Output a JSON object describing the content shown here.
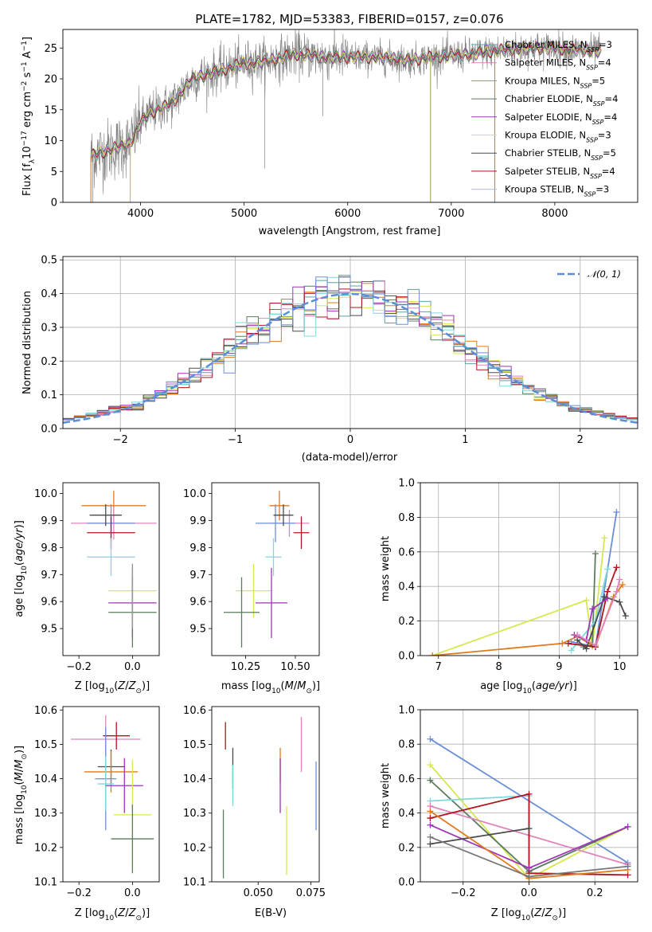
{
  "chart_data": [
    {
      "type": "line",
      "title": "PLATE=1782, MJD=53383, FIBERID=0157, z=0.076",
      "xlabel": "wavelength [Angstrom, rest frame]",
      "ylabel": "Flux [f_λ10^-17 erg cm^-2 s^-1 A^-1]",
      "xlim": [
        3250,
        8800
      ],
      "ylim": [
        0,
        28
      ],
      "xticks": [
        4000,
        5000,
        6000,
        7000,
        8000
      ],
      "yticks": [
        0,
        5,
        10,
        15,
        20,
        25
      ],
      "grid": false,
      "legend_position": "right",
      "continuum": {
        "x": [
          3520,
          3700,
          3900,
          4000,
          4100,
          4300,
          4500,
          4800,
          5000,
          5200,
          5500,
          5800,
          6000,
          6300,
          6600,
          6800,
          7000,
          7200,
          7400,
          7600,
          7800,
          8000,
          8200,
          8450
        ],
        "y": [
          7.5,
          8.5,
          9.5,
          13,
          14.5,
          16,
          20,
          21.5,
          22.5,
          22.8,
          24,
          23.5,
          23.5,
          23.5,
          23,
          23.5,
          23.8,
          24,
          24.5,
          24.8,
          25,
          25,
          24.7,
          24.5
        ]
      },
      "series": [
        {
          "name": "Chabrier MILES, N_SSP=3",
          "name_main": "Chabrier MILES, N",
          "sub": "SSP",
          "n": "=3",
          "color": "#5ea49f"
        },
        {
          "name": "Salpeter MILES, N_SSP=4",
          "name_main": "Salpeter MILES, N",
          "sub": "SSP",
          "n": "=4",
          "color": "#e084be"
        },
        {
          "name": "Kroupa MILES, N_SSP=5",
          "name_main": "Kroupa MILES, N",
          "sub": "SSP",
          "n": "=5",
          "color": "#e07a1f"
        },
        {
          "name": "Chabrier ELODIE, N_SSP=4",
          "name_main": "Chabrier ELODIE, N",
          "sub": "SSP",
          "n": "=4",
          "color": "#5c7b5c"
        },
        {
          "name": "Salpeter ELODIE, N_SSP=4",
          "name_main": "Salpeter ELODIE, N",
          "sub": "SSP",
          "n": "=4",
          "color": "#9d35b5"
        },
        {
          "name": "Kroupa ELODIE, N_SSP=3",
          "name_main": "Kroupa ELODIE, N",
          "sub": "SSP",
          "n": "=3",
          "color": "#d6e84f"
        },
        {
          "name": "Chabrier STELIB, N_SSP=5",
          "name_main": "Chabrier STELIB, N",
          "sub": "SSP",
          "n": "=5",
          "color": "#4a4a4a"
        },
        {
          "name": "Salpeter STELIB, N_SSP=4",
          "name_main": "Salpeter STELIB, N",
          "sub": "SSP",
          "n": "=4",
          "color": "#b0141e"
        },
        {
          "name": "Kroupa STELIB, N_SSP=3",
          "name_main": "Kroupa STELIB, N",
          "sub": "SSP",
          "n": "=3",
          "color": "#7fd8dc"
        }
      ]
    },
    {
      "type": "line",
      "xlabel": "(data-model)/error",
      "ylabel": "Normed distribution",
      "xlim": [
        -2.5,
        2.5
      ],
      "ylim": [
        0,
        0.51
      ],
      "xticks": [
        -2,
        -1,
        0,
        1,
        2
      ],
      "xtick_labels": [
        "−2",
        "−1",
        "0",
        "1",
        "2"
      ],
      "yticks": [
        0.0,
        0.1,
        0.2,
        0.3,
        0.4,
        0.5
      ],
      "ytick_labels": [
        "0.0",
        "0.1",
        "0.2",
        "0.3",
        "0.4",
        "0.5"
      ],
      "grid": true,
      "legend_position": "top-right",
      "legend_label": "𝒩(0, 1)",
      "gaussian_color": "#5b8ed6",
      "bin_width": 0.1,
      "histogram_colors": [
        "#5ea49f",
        "#e084be",
        "#e07a1f",
        "#5c7b5c",
        "#9d35b5",
        "#d6e84f",
        "#4a4a4a",
        "#b0141e",
        "#7fd8dc",
        "#6b8fd8"
      ]
    },
    {
      "type": "scatter",
      "xlabel": "Z [log10(Z/Z⊙)]",
      "ylabel": "age [log10(age/yr)]",
      "xlim": [
        -0.26,
        0.1
      ],
      "ylim": [
        9.4,
        10.04
      ],
      "xticks": [
        -0.2,
        0.0
      ],
      "xtick_labels": [
        "−0.2",
        "0.0"
      ],
      "yticks": [
        9.5,
        9.6,
        9.7,
        9.8,
        9.9,
        10.0
      ],
      "ytick_labels": [
        "9.5",
        "9.6",
        "9.7",
        "9.8",
        "9.9",
        "10.0"
      ],
      "points": [
        {
          "x": -0.07,
          "y": 9.955,
          "xerr": 0.12,
          "yerr": 0.055,
          "color": "#e07a1f"
        },
        {
          "x": -0.07,
          "y": 9.89,
          "xerr": 0.16,
          "yerr": 0.06,
          "color": "#e084be"
        },
        {
          "x": -0.08,
          "y": 9.89,
          "xerr": 0.09,
          "yerr": 0.07,
          "color": "#6b8fd8"
        },
        {
          "x": -0.1,
          "y": 9.92,
          "xerr": 0.06,
          "yerr": 0.04,
          "color": "#4a4a4a"
        },
        {
          "x": -0.08,
          "y": 9.855,
          "xerr": 0.09,
          "yerr": 0.06,
          "color": "#b0141e"
        },
        {
          "x": -0.08,
          "y": 9.765,
          "xerr": 0.09,
          "yerr": 0.07,
          "color": "#7fd8dc"
        },
        {
          "x": 0.0,
          "y": 9.64,
          "xerr": 0.09,
          "yerr": 0.1,
          "color": "#d6e84f"
        },
        {
          "x": 0.0,
          "y": 9.595,
          "xerr": 0.09,
          "yerr": 0.13,
          "color": "#9d35b5"
        },
        {
          "x": 0.0,
          "y": 9.56,
          "xerr": 0.09,
          "yerr": 0.13,
          "color": "#5c7b5c"
        },
        {
          "x": 0.0,
          "y": 9.62,
          "xerr": 0.0,
          "yerr": 0.12,
          "color": "#999999"
        }
      ]
    },
    {
      "type": "scatter",
      "xlabel": "mass [log10(M/M⊙)]",
      "xlim": [
        10.08,
        10.62
      ],
      "ylim": [
        9.4,
        10.04
      ],
      "xticks": [
        10.25,
        10.5
      ],
      "xtick_labels": [
        "10.25",
        "10.50"
      ],
      "yticks": [
        9.5,
        9.6,
        9.7,
        9.8,
        9.9,
        10.0
      ],
      "ytick_labels": [
        "9.5",
        "9.6",
        "9.7",
        "9.8",
        "9.9",
        "10.0"
      ],
      "points": [
        {
          "x": 10.42,
          "y": 9.955,
          "xerr": 0.05,
          "yerr": 0.055,
          "color": "#e07a1f"
        },
        {
          "x": 10.47,
          "y": 9.89,
          "xerr": 0.1,
          "yerr": 0.05,
          "color": "#e084be"
        },
        {
          "x": 10.4,
          "y": 9.89,
          "xerr": 0.1,
          "yerr": 0.07,
          "color": "#6b8fd8"
        },
        {
          "x": 10.44,
          "y": 9.92,
          "xerr": 0.05,
          "yerr": 0.04,
          "color": "#4a4a4a"
        },
        {
          "x": 10.53,
          "y": 9.855,
          "xerr": 0.04,
          "yerr": 0.06,
          "color": "#b0141e"
        },
        {
          "x": 10.39,
          "y": 9.765,
          "xerr": 0.04,
          "yerr": 0.07,
          "color": "#7fd8dc"
        },
        {
          "x": 10.29,
          "y": 9.64,
          "xerr": 0.09,
          "yerr": 0.1,
          "color": "#d6e84f"
        },
        {
          "x": 10.38,
          "y": 9.595,
          "xerr": 0.08,
          "yerr": 0.13,
          "color": "#9d35b5"
        },
        {
          "x": 10.23,
          "y": 9.56,
          "xerr": 0.09,
          "yerr": 0.13,
          "color": "#5c7b5c"
        }
      ]
    },
    {
      "type": "line",
      "xlabel": "age [log10(age/yr)]",
      "ylabel": "mass weight",
      "xlim": [
        6.7,
        10.3
      ],
      "ylim": [
        0,
        1
      ],
      "xticks": [
        7,
        8,
        9,
        10
      ],
      "xtick_labels": [
        "7",
        "8",
        "9",
        "10"
      ],
      "yticks": [
        0.0,
        0.2,
        0.4,
        0.6,
        0.8,
        1.0
      ],
      "ytick_labels": [
        "0.0",
        "0.2",
        "0.4",
        "0.6",
        "0.8",
        "1.0"
      ],
      "grid": true,
      "series": [
        {
          "color": "#d6e84f",
          "x": [
            6.9,
            9.45,
            9.55,
            9.75
          ],
          "y": [
            0.0,
            0.32,
            0.05,
            0.68
          ]
        },
        {
          "color": "#e07a1f",
          "x": [
            6.9,
            9.05,
            9.3,
            9.6,
            9.9,
            10.05
          ],
          "y": [
            0.0,
            0.07,
            0.11,
            0.05,
            0.34,
            0.41
          ]
        },
        {
          "color": "#6b8fd8",
          "x": [
            9.2,
            9.6,
            9.95
          ],
          "y": [
            0.08,
            0.05,
            0.83
          ]
        },
        {
          "color": "#5c7b5c",
          "x": [
            9.4,
            9.55,
            9.6
          ],
          "y": [
            0.05,
            0.06,
            0.59
          ]
        },
        {
          "color": "#7fd8dc",
          "x": [
            9.2,
            9.6,
            9.8
          ],
          "y": [
            0.03,
            0.2,
            0.5
          ]
        },
        {
          "color": "#b0141e",
          "x": [
            9.15,
            9.6,
            9.8,
            9.95
          ],
          "y": [
            0.07,
            0.05,
            0.37,
            0.51
          ]
        },
        {
          "color": "#4a4a4a",
          "x": [
            9.3,
            9.45,
            9.75,
            10.0,
            10.1
          ],
          "y": [
            0.09,
            0.04,
            0.34,
            0.31,
            0.23
          ]
        },
        {
          "color": "#9d35b5",
          "x": [
            9.25,
            9.45,
            9.55,
            9.8
          ],
          "y": [
            0.12,
            0.09,
            0.27,
            0.33
          ]
        },
        {
          "color": "#e084be",
          "x": [
            9.3,
            9.6,
            9.95,
            10.0
          ],
          "y": [
            0.12,
            0.06,
            0.37,
            0.44
          ]
        }
      ]
    },
    {
      "type": "scatter",
      "xlabel": "Z [log10(Z/Z⊙)]",
      "ylabel": "mass [log10(M/M⊙)]",
      "xlim": [
        -0.26,
        0.1
      ],
      "ylim": [
        10.1,
        10.61
      ],
      "xticks": [
        -0.2,
        0.0
      ],
      "xtick_labels": [
        "−0.2",
        "0.0"
      ],
      "yticks": [
        10.1,
        10.2,
        10.3,
        10.4,
        10.5,
        10.6
      ],
      "ytick_labels": [
        "10.1",
        "10.2",
        "10.3",
        "10.4",
        "10.5",
        "10.6"
      ],
      "points": [
        {
          "x": -0.1,
          "y": 10.515,
          "xerr": 0.13,
          "yerr": 0.07,
          "color": "#e084be"
        },
        {
          "x": -0.06,
          "y": 10.525,
          "xerr": 0.05,
          "yerr": 0.04,
          "color": "#b0141e"
        },
        {
          "x": -0.08,
          "y": 10.435,
          "xerr": 0.05,
          "yerr": 0.05,
          "color": "#4a4a4a"
        },
        {
          "x": -0.08,
          "y": 10.42,
          "xerr": 0.1,
          "yerr": 0.06,
          "color": "#e07a1f"
        },
        {
          "x": -0.1,
          "y": 10.4,
          "xerr": 0.04,
          "yerr": 0.15,
          "color": "#6b8fd8"
        },
        {
          "x": -0.1,
          "y": 10.385,
          "xerr": 0.03,
          "yerr": 0.08,
          "color": "#7fd8dc"
        },
        {
          "x": -0.03,
          "y": 10.38,
          "xerr": 0.07,
          "yerr": 0.08,
          "color": "#9d35b5"
        },
        {
          "x": 0.0,
          "y": 10.295,
          "xerr": 0.07,
          "yerr": 0.16,
          "color": "#d6e84f"
        },
        {
          "x": 0.0,
          "y": 10.225,
          "xerr": 0.08,
          "yerr": 0.1,
          "color": "#5c7b5c"
        }
      ]
    },
    {
      "type": "scatter",
      "xlabel": "E(B-V)",
      "xlim": [
        0.028,
        0.079
      ],
      "ylim": [
        10.1,
        10.61
      ],
      "xticks": [
        0.05,
        0.075
      ],
      "xtick_labels": [
        "0.050",
        "0.075"
      ],
      "yticks": [
        10.1,
        10.2,
        10.3,
        10.4,
        10.5,
        10.6
      ],
      "ytick_labels": [
        "10.1",
        "10.2",
        "10.3",
        "10.4",
        "10.5",
        "10.6"
      ],
      "points": [
        {
          "x": 0.0335,
          "y": 10.21,
          "yerr": 0.1,
          "color": "#5c7b5c"
        },
        {
          "x": 0.0345,
          "y": 10.525,
          "yerr": 0.04,
          "color": "#b0141e"
        },
        {
          "x": 0.038,
          "y": 10.43,
          "yerr": 0.06,
          "color": "#4a4a4a"
        },
        {
          "x": 0.038,
          "y": 10.38,
          "yerr": 0.06,
          "color": "#7fd8dc"
        },
        {
          "x": 0.0605,
          "y": 10.44,
          "yerr": 0.05,
          "color": "#e07a1f"
        },
        {
          "x": 0.0605,
          "y": 10.38,
          "yerr": 0.08,
          "color": "#9d35b5"
        },
        {
          "x": 0.0635,
          "y": 10.22,
          "yerr": 0.1,
          "color": "#d6e84f"
        },
        {
          "x": 0.0705,
          "y": 10.5,
          "yerr": 0.08,
          "color": "#e084be"
        },
        {
          "x": 0.0775,
          "y": 10.35,
          "yerr": 0.1,
          "color": "#6b8fd8"
        }
      ]
    },
    {
      "type": "line",
      "xlabel": "Z [log10(Z/Z⊙)]",
      "ylabel": "mass weight",
      "xlim": [
        -0.33,
        0.33
      ],
      "ylim": [
        0,
        1
      ],
      "xticks": [
        -0.2,
        0.0,
        0.2
      ],
      "xtick_labels": [
        "−0.2",
        "0.0",
        "0.2"
      ],
      "yticks": [
        0.0,
        0.2,
        0.4,
        0.6,
        0.8,
        1.0
      ],
      "ytick_labels": [
        "0.0",
        "0.2",
        "0.4",
        "0.6",
        "0.8",
        "1.0"
      ],
      "grid": true,
      "series": [
        {
          "color": "#6b8fd8",
          "x": [
            -0.3,
            0.3
          ],
          "y": [
            0.83,
            0.11
          ]
        },
        {
          "color": "#d6e84f",
          "x": [
            -0.3,
            0.0,
            0.3
          ],
          "y": [
            0.68,
            0.02,
            0.32
          ]
        },
        {
          "color": "#5c7b5c",
          "x": [
            -0.3,
            0.0,
            0.3
          ],
          "y": [
            0.59,
            0.06,
            0.32
          ]
        },
        {
          "color": "#7fd8dc",
          "x": [
            -0.3,
            0.0,
            0.0
          ],
          "y": [
            0.47,
            0.5,
            0.02
          ]
        },
        {
          "color": "#e084be",
          "x": [
            -0.3,
            0.3
          ],
          "y": [
            0.44,
            0.1
          ]
        },
        {
          "color": "#b0141e",
          "x": [
            -0.3,
            0.0,
            0.0,
            0.3
          ],
          "y": [
            0.37,
            0.51,
            0.05,
            0.04
          ]
        },
        {
          "color": "#9d35b5",
          "x": [
            -0.3,
            0.0,
            0.3
          ],
          "y": [
            0.33,
            0.08,
            0.32
          ]
        },
        {
          "color": "#4a4a4a",
          "x": [
            -0.3,
            0.0
          ],
          "y": [
            0.22,
            0.31
          ]
        },
        {
          "color": "#e07a1f",
          "x": [
            -0.3,
            0.0,
            0.3
          ],
          "y": [
            0.41,
            0.02,
            0.07
          ]
        },
        {
          "color": "#777777",
          "x": [
            -0.3,
            0.0,
            0.3
          ],
          "y": [
            0.26,
            0.03,
            0.09
          ]
        }
      ]
    }
  ]
}
